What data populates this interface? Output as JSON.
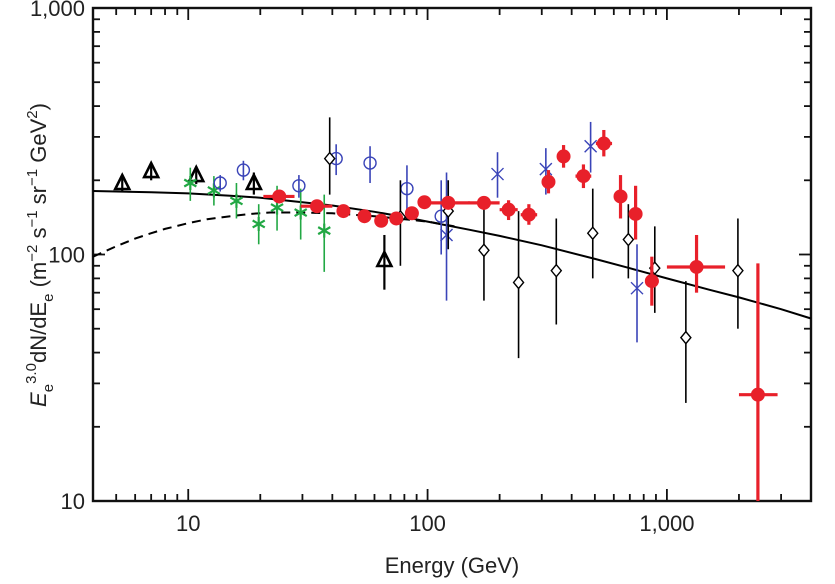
{
  "chart_data": {
    "type": "scatter",
    "title": "",
    "xlabel": "Energy (GeV)",
    "ylabel_parts": {
      "base": "E",
      "sub": "e",
      "sup": "3.0",
      "mid": "dN/dE",
      "sub2": "e",
      "units_open": " (m",
      "units_exp1": "−2",
      "units_s": " s",
      "units_exp2": "−1",
      "units_sr": " sr",
      "units_exp3": "−1",
      "units_gev": " GeV",
      "units_exp4": "2",
      "units_close": ")"
    },
    "xscale": "log",
    "yscale": "log",
    "xlim": [
      4,
      4000
    ],
    "ylim": [
      10,
      1000
    ],
    "x_ticks": [
      {
        "value": 10,
        "label": "10"
      },
      {
        "value": 100,
        "label": "100"
      },
      {
        "value": 1000,
        "label": "1,000"
      }
    ],
    "y_ticks": [
      {
        "value": 10,
        "label": "10"
      },
      {
        "value": 100,
        "label": "100"
      },
      {
        "value": 1000,
        "label": "1,000"
      }
    ],
    "series": [
      {
        "name": "black-triangles",
        "marker": "triangle",
        "color": "#000000",
        "points": [
          {
            "x": 5.3,
            "y": 195,
            "ylo": 180,
            "yhi": 210
          },
          {
            "x": 7.0,
            "y": 218,
            "ylo": 200,
            "yhi": 235
          },
          {
            "x": 10.8,
            "y": 210,
            "ylo": 193,
            "yhi": 228
          },
          {
            "x": 18.8,
            "y": 195,
            "ylo": 175,
            "yhi": 215
          },
          {
            "x": 66.0,
            "y": 95,
            "ylo": 72,
            "yhi": 120
          }
        ]
      },
      {
        "name": "green-asterisks",
        "marker": "asterisk",
        "color": "#22a844",
        "points": [
          {
            "x": 10.2,
            "y": 195,
            "ylo": 165,
            "yhi": 225
          },
          {
            "x": 12.8,
            "y": 182,
            "ylo": 158,
            "yhi": 208
          },
          {
            "x": 15.9,
            "y": 165,
            "ylo": 140,
            "yhi": 195
          },
          {
            "x": 19.7,
            "y": 133,
            "ylo": 110,
            "yhi": 160
          },
          {
            "x": 23.5,
            "y": 155,
            "ylo": 125,
            "yhi": 190
          },
          {
            "x": 29.5,
            "y": 148,
            "ylo": 115,
            "yhi": 185
          },
          {
            "x": 37.0,
            "y": 125,
            "ylo": 85,
            "yhi": 175
          }
        ]
      },
      {
        "name": "blue-circles",
        "marker": "circle",
        "color": "#3a44b8",
        "points": [
          {
            "x": 13.6,
            "y": 195,
            "ylo": 180,
            "yhi": 210
          },
          {
            "x": 17.0,
            "y": 220,
            "ylo": 200,
            "yhi": 240
          },
          {
            "x": 29.0,
            "y": 190,
            "ylo": 170,
            "yhi": 210
          },
          {
            "x": 41.5,
            "y": 245,
            "ylo": 210,
            "yhi": 280
          },
          {
            "x": 57.5,
            "y": 235,
            "ylo": 195,
            "yhi": 275
          },
          {
            "x": 82.0,
            "y": 185,
            "ylo": 145,
            "yhi": 230
          },
          {
            "x": 114.0,
            "y": 143,
            "ylo": 100,
            "yhi": 200
          }
        ]
      },
      {
        "name": "blue-crosses",
        "marker": "cross",
        "color": "#3a44b8",
        "points": [
          {
            "x": 120.0,
            "y": 120,
            "ylo": 65,
            "yhi": 215
          },
          {
            "x": 196.0,
            "y": 212,
            "ylo": 170,
            "yhi": 260
          },
          {
            "x": 312.0,
            "y": 222,
            "ylo": 175,
            "yhi": 270
          },
          {
            "x": 480.0,
            "y": 275,
            "ylo": 215,
            "yhi": 345
          },
          {
            "x": 750.0,
            "y": 73,
            "ylo": 44,
            "yhi": 110
          }
        ]
      },
      {
        "name": "black-diamonds",
        "marker": "diamond",
        "color": "#000000",
        "points": [
          {
            "x": 39.0,
            "y": 245,
            "ylo": 175,
            "yhi": 360
          },
          {
            "x": 77.0,
            "y": 142,
            "ylo": 90,
            "yhi": 200
          },
          {
            "x": 122.0,
            "y": 150,
            "ylo": 105,
            "yhi": 200
          },
          {
            "x": 172.0,
            "y": 104,
            "ylo": 65,
            "yhi": 155
          },
          {
            "x": 240.0,
            "y": 77,
            "ylo": 38,
            "yhi": 150
          },
          {
            "x": 345.0,
            "y": 86,
            "ylo": 52,
            "yhi": 140
          },
          {
            "x": 490.0,
            "y": 122,
            "ylo": 80,
            "yhi": 185
          },
          {
            "x": 690.0,
            "y": 115,
            "ylo": 80,
            "yhi": 160
          },
          {
            "x": 890.0,
            "y": 88,
            "ylo": 58,
            "yhi": 130
          },
          {
            "x": 1200.0,
            "y": 46,
            "ylo": 25,
            "yhi": 78
          },
          {
            "x": 1980.0,
            "y": 86,
            "ylo": 50,
            "yhi": 140
          }
        ]
      },
      {
        "name": "red-filled-circles",
        "marker": "filled-circle",
        "color": "#e8202a",
        "points": [
          {
            "x": 24.0,
            "y": 172,
            "ylo": 163,
            "yhi": 181,
            "xlo": 20.6,
            "xhi": 27.8
          },
          {
            "x": 34.5,
            "y": 157,
            "ylo": 150,
            "yhi": 164,
            "xlo": 29.5,
            "xhi": 40.0
          },
          {
            "x": 44.5,
            "y": 150,
            "ylo": 144,
            "yhi": 156
          },
          {
            "x": 54.5,
            "y": 143,
            "ylo": 137,
            "yhi": 149
          },
          {
            "x": 64.0,
            "y": 137,
            "ylo": 131,
            "yhi": 143
          },
          {
            "x": 74.0,
            "y": 140,
            "ylo": 134,
            "yhi": 146
          },
          {
            "x": 86.0,
            "y": 147,
            "ylo": 140,
            "yhi": 154
          },
          {
            "x": 97.0,
            "y": 163,
            "ylo": 155,
            "yhi": 171
          },
          {
            "x": 122.0,
            "y": 162,
            "ylo": 153,
            "yhi": 171,
            "xlo": 100.0,
            "xhi": 150.0
          },
          {
            "x": 172.0,
            "y": 162,
            "ylo": 152,
            "yhi": 172,
            "xlo": 148.0,
            "xhi": 200.0
          },
          {
            "x": 218.0,
            "y": 152,
            "ylo": 138,
            "yhi": 166,
            "xlo": 200.0,
            "xhi": 238.0
          },
          {
            "x": 265.0,
            "y": 145,
            "ylo": 132,
            "yhi": 160,
            "xlo": 245.0,
            "xhi": 287.0
          },
          {
            "x": 320.0,
            "y": 197,
            "ylo": 177,
            "yhi": 220
          },
          {
            "x": 370.0,
            "y": 250,
            "ylo": 225,
            "yhi": 278
          },
          {
            "x": 448.0,
            "y": 208,
            "ylo": 186,
            "yhi": 232,
            "xlo": 415.0,
            "xhi": 483.0
          },
          {
            "x": 545.0,
            "y": 282,
            "ylo": 250,
            "yhi": 320,
            "xlo": 505.0,
            "xhi": 590.0
          },
          {
            "x": 640.0,
            "y": 172,
            "ylo": 140,
            "yhi": 210
          },
          {
            "x": 740.0,
            "y": 146,
            "ylo": 115,
            "yhi": 190
          },
          {
            "x": 865.0,
            "y": 78,
            "ylo": 62,
            "yhi": 98,
            "xlo": 810.0,
            "xhi": 925.0
          },
          {
            "x": 1330.0,
            "y": 89,
            "ylo": 70,
            "yhi": 120,
            "xlo": 1000.0,
            "xhi": 1750.0
          },
          {
            "x": 2400.0,
            "y": 27,
            "ylo": 10,
            "yhi": 92,
            "xlo": 2000.0,
            "xhi": 2900.0
          }
        ]
      }
    ],
    "curves": [
      {
        "name": "model-solid",
        "style": "solid",
        "color": "#000000",
        "points": [
          [
            4,
            181
          ],
          [
            7,
            179
          ],
          [
            10,
            177
          ],
          [
            15,
            173
          ],
          [
            20,
            170
          ],
          [
            30,
            163
          ],
          [
            40,
            158
          ],
          [
            60,
            149
          ],
          [
            80,
            142
          ],
          [
            100,
            136
          ],
          [
            150,
            126
          ],
          [
            200,
            119
          ],
          [
            300,
            109
          ],
          [
            500,
            96
          ],
          [
            700,
            88
          ],
          [
            1000,
            80
          ],
          [
            1500,
            72
          ],
          [
            2000,
            67
          ],
          [
            3000,
            60
          ],
          [
            4000,
            55
          ]
        ]
      },
      {
        "name": "model-dashed",
        "style": "dashed",
        "color": "#000000",
        "points": [
          [
            4,
            98
          ],
          [
            5,
            108
          ],
          [
            6,
            116
          ],
          [
            7,
            122
          ],
          [
            8,
            127
          ],
          [
            10,
            134
          ],
          [
            12,
            139
          ],
          [
            15,
            143
          ],
          [
            18,
            146
          ],
          [
            22,
            148
          ],
          [
            25,
            148
          ],
          [
            30,
            148
          ],
          [
            40,
            147
          ],
          [
            60,
            143
          ],
          [
            80,
            139
          ],
          [
            100,
            136
          ],
          [
            130,
            130
          ]
        ]
      }
    ]
  }
}
